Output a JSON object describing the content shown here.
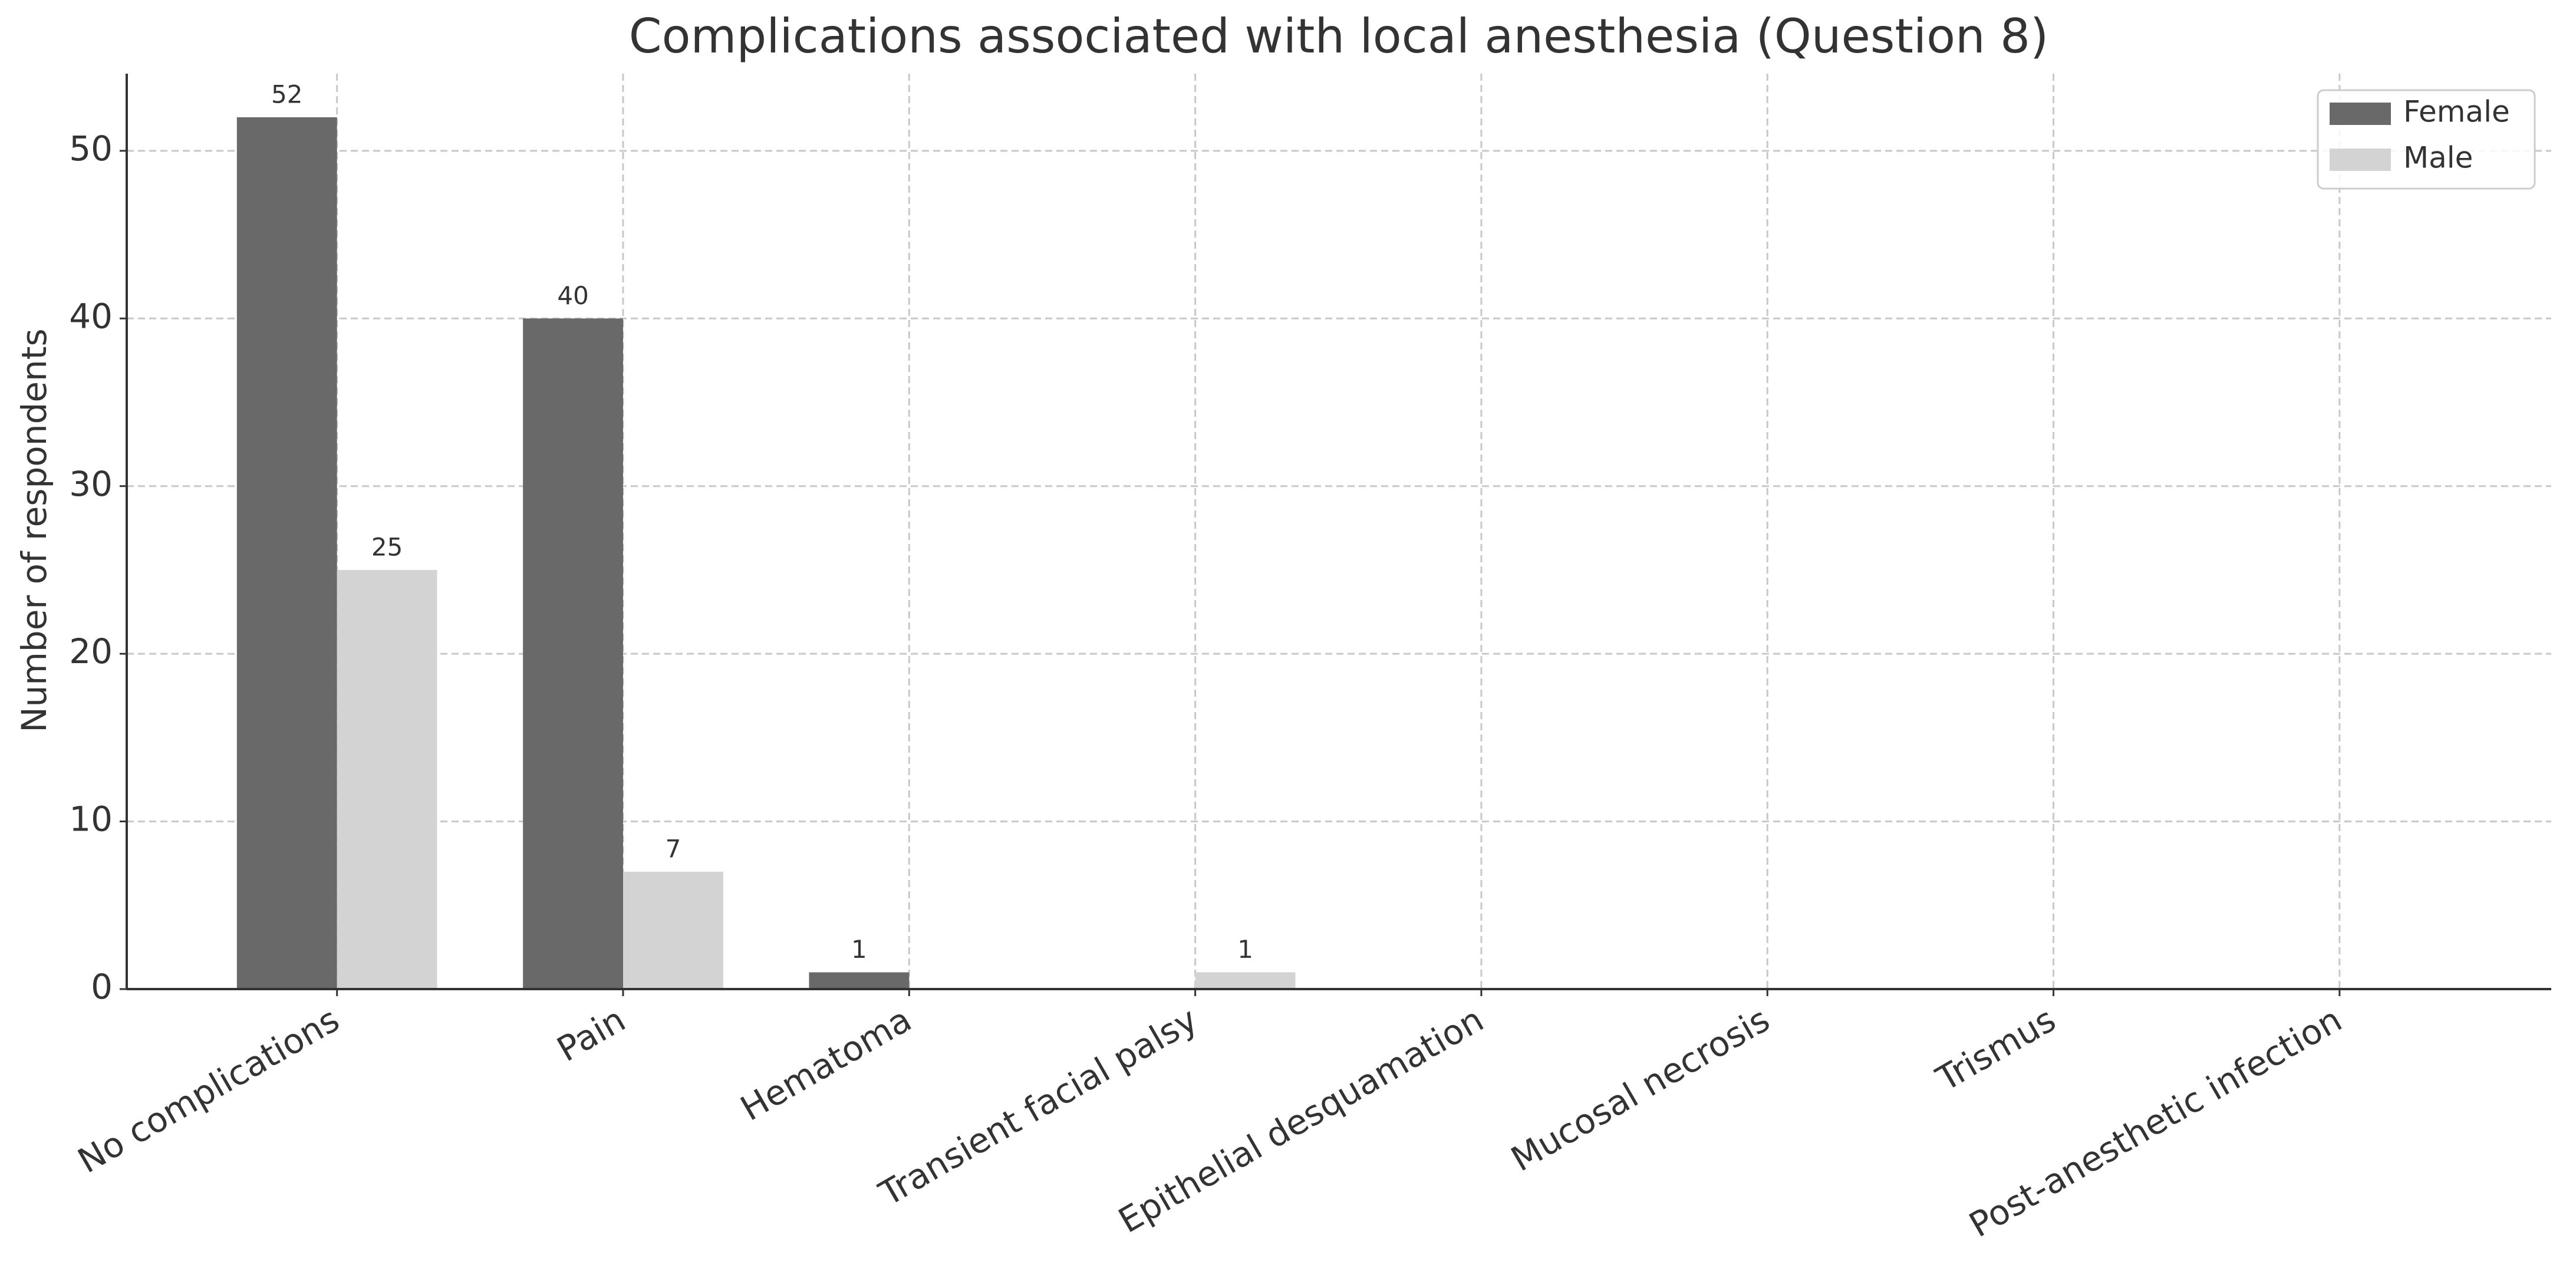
{
  "chart_data": {
    "type": "bar",
    "title": "Complications associated with local anesthesia (Question 8)",
    "y_label": "Number of respondents",
    "categories": [
      "No complications",
      "Pain",
      "Hematoma",
      "Transient facial palsy",
      "Epithelial desquamation",
      "Mucosal necrosis",
      "Trismus",
      "Post-anesthetic infection"
    ],
    "series": [
      {
        "name": "Female",
        "color": "#696969",
        "values": [
          52,
          40,
          1,
          0,
          0,
          0,
          0,
          0
        ]
      },
      {
        "name": "Male",
        "color": "#d3d3d3",
        "values": [
          25,
          7,
          0,
          1,
          0,
          0,
          0,
          0
        ]
      }
    ],
    "ylim": [
      0,
      54.6
    ],
    "yticks": [
      0,
      10,
      20,
      30,
      40,
      50
    ],
    "grid": true,
    "legend": "upper right"
  }
}
